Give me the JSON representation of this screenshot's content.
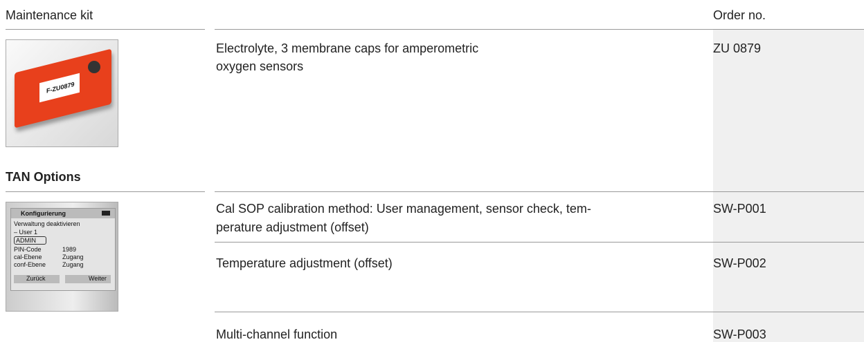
{
  "header": {
    "title": "Maintenance kit",
    "order_label": "Order no."
  },
  "sections": [
    {
      "items": [
        {
          "description_lines": [
            "Electrolyte, 3 membrane caps for amperometric",
            "oxygen sensors"
          ],
          "order_no": "ZU 0879"
        }
      ],
      "image": {
        "label": "F-ZU0879"
      }
    },
    {
      "title": "TAN Options",
      "image": {
        "title": "Konfigurierung",
        "line1": "Verwaltung deaktivieren",
        "line2": "– User 1",
        "button": "ADMIN",
        "rows": [
          [
            "PIN-Code",
            "1989"
          ],
          [
            "cal-Ebene",
            "Zugang"
          ],
          [
            "conf-Ebene",
            "Zugang"
          ]
        ],
        "back": "Zurück",
        "next": "Weiter"
      },
      "items": [
        {
          "description_lines": [
            "Cal SOP calibration method: User management, sensor check, tem-",
            "perature adjustment (offset)"
          ],
          "order_no": "SW-P001"
        },
        {
          "description_lines": [
            "Temperature adjustment (offset)"
          ],
          "order_no": "SW-P002"
        },
        {
          "description_lines": [
            "Multi-channel function"
          ],
          "order_no": "SW-P003"
        }
      ]
    }
  ]
}
